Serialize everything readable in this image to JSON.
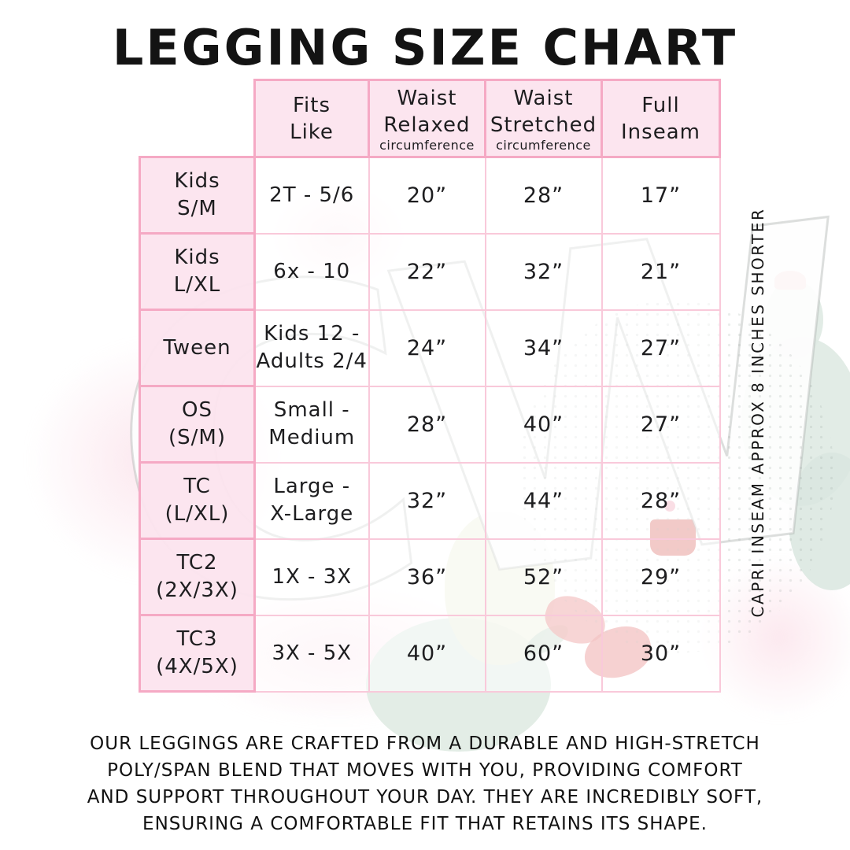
{
  "page": {
    "title": "LEGGING SIZE CHART"
  },
  "watermark": {
    "monogram": "CW"
  },
  "side_note": "CAPRI INSEAM APPROX 8 INCHES SHORTER",
  "table": {
    "headers": [
      {
        "lines": [
          "Fits",
          "Like"
        ],
        "sub": ""
      },
      {
        "lines": [
          "Waist",
          "Relaxed"
        ],
        "sub": "circumference"
      },
      {
        "lines": [
          "Waist",
          "Stretched"
        ],
        "sub": "circumference"
      },
      {
        "lines": [
          "Full",
          "Inseam"
        ],
        "sub": ""
      }
    ],
    "rows": [
      {
        "label": [
          "Kids",
          "S/M"
        ],
        "fits_like": [
          "2T - 5/6"
        ],
        "waist_relaxed": "20”",
        "waist_stretched": "28”",
        "full_inseam": "17”"
      },
      {
        "label": [
          "Kids",
          "L/XL"
        ],
        "fits_like": [
          "6x - 10"
        ],
        "waist_relaxed": "22”",
        "waist_stretched": "32”",
        "full_inseam": "21”"
      },
      {
        "label": [
          "Tween"
        ],
        "fits_like": [
          "Kids 12 -",
          "Adults 2/4"
        ],
        "waist_relaxed": "24”",
        "waist_stretched": "34”",
        "full_inseam": "27”"
      },
      {
        "label": [
          "OS",
          "(S/M)"
        ],
        "fits_like": [
          "Small -",
          "Medium"
        ],
        "waist_relaxed": "28”",
        "waist_stretched": "40”",
        "full_inseam": "27”"
      },
      {
        "label": [
          "TC",
          "(L/XL)"
        ],
        "fits_like": [
          "Large -",
          "X-Large"
        ],
        "waist_relaxed": "32”",
        "waist_stretched": "44”",
        "full_inseam": "28”"
      },
      {
        "label": [
          "TC2",
          "(2X/3X)"
        ],
        "fits_like": [
          "1X - 3X"
        ],
        "waist_relaxed": "36”",
        "waist_stretched": "52”",
        "full_inseam": "29”"
      },
      {
        "label": [
          "TC3",
          "(4X/5X)"
        ],
        "fits_like": [
          "3X - 5X"
        ],
        "waist_relaxed": "40”",
        "waist_stretched": "60”",
        "full_inseam": "30”"
      }
    ]
  },
  "description": {
    "lines": [
      "OUR LEGGINGS ARE CRAFTED FROM A DURABLE AND HIGH-STRETCH",
      "POLY/SPAN BLEND THAT MOVES WITH YOU, PROVIDING COMFORT",
      "AND SUPPORT THROUGHOUT YOUR DAY. THEY ARE INCREDIBLY SOFT,",
      "ENSURING A COMFORTABLE FIT THAT RETAINS ITS SHAPE."
    ]
  },
  "colors": {
    "accent_border": "#f5a9c4",
    "grid_border": "#f9c9da",
    "header_fill": "#fce4ee",
    "text": "#1d1d1f",
    "cactus_green": "#dfeae3",
    "flower_red": "#e88b8b",
    "wash_pink": "#f9d3e0"
  }
}
